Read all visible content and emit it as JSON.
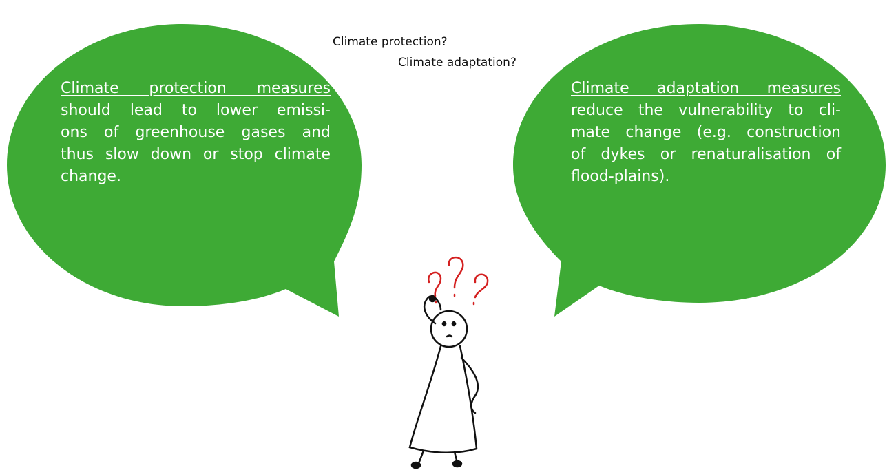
{
  "top_questions": [
    "Climate protection?",
    "Climate adaptation?"
  ],
  "left_bubble": {
    "heading": "Climate protection measures",
    "lines": [
      "should lead to lower emissi-",
      "ons of greenhouse gases and",
      "thus slow down or stop climate",
      "change."
    ]
  },
  "right_bubble": {
    "heading": "Climate adaptation measures",
    "lines": [
      "reduce the vulnerability to cli-",
      "mate change (e.g. construction",
      "of dykes or renaturalisation of",
      "flood-plains)."
    ]
  }
}
